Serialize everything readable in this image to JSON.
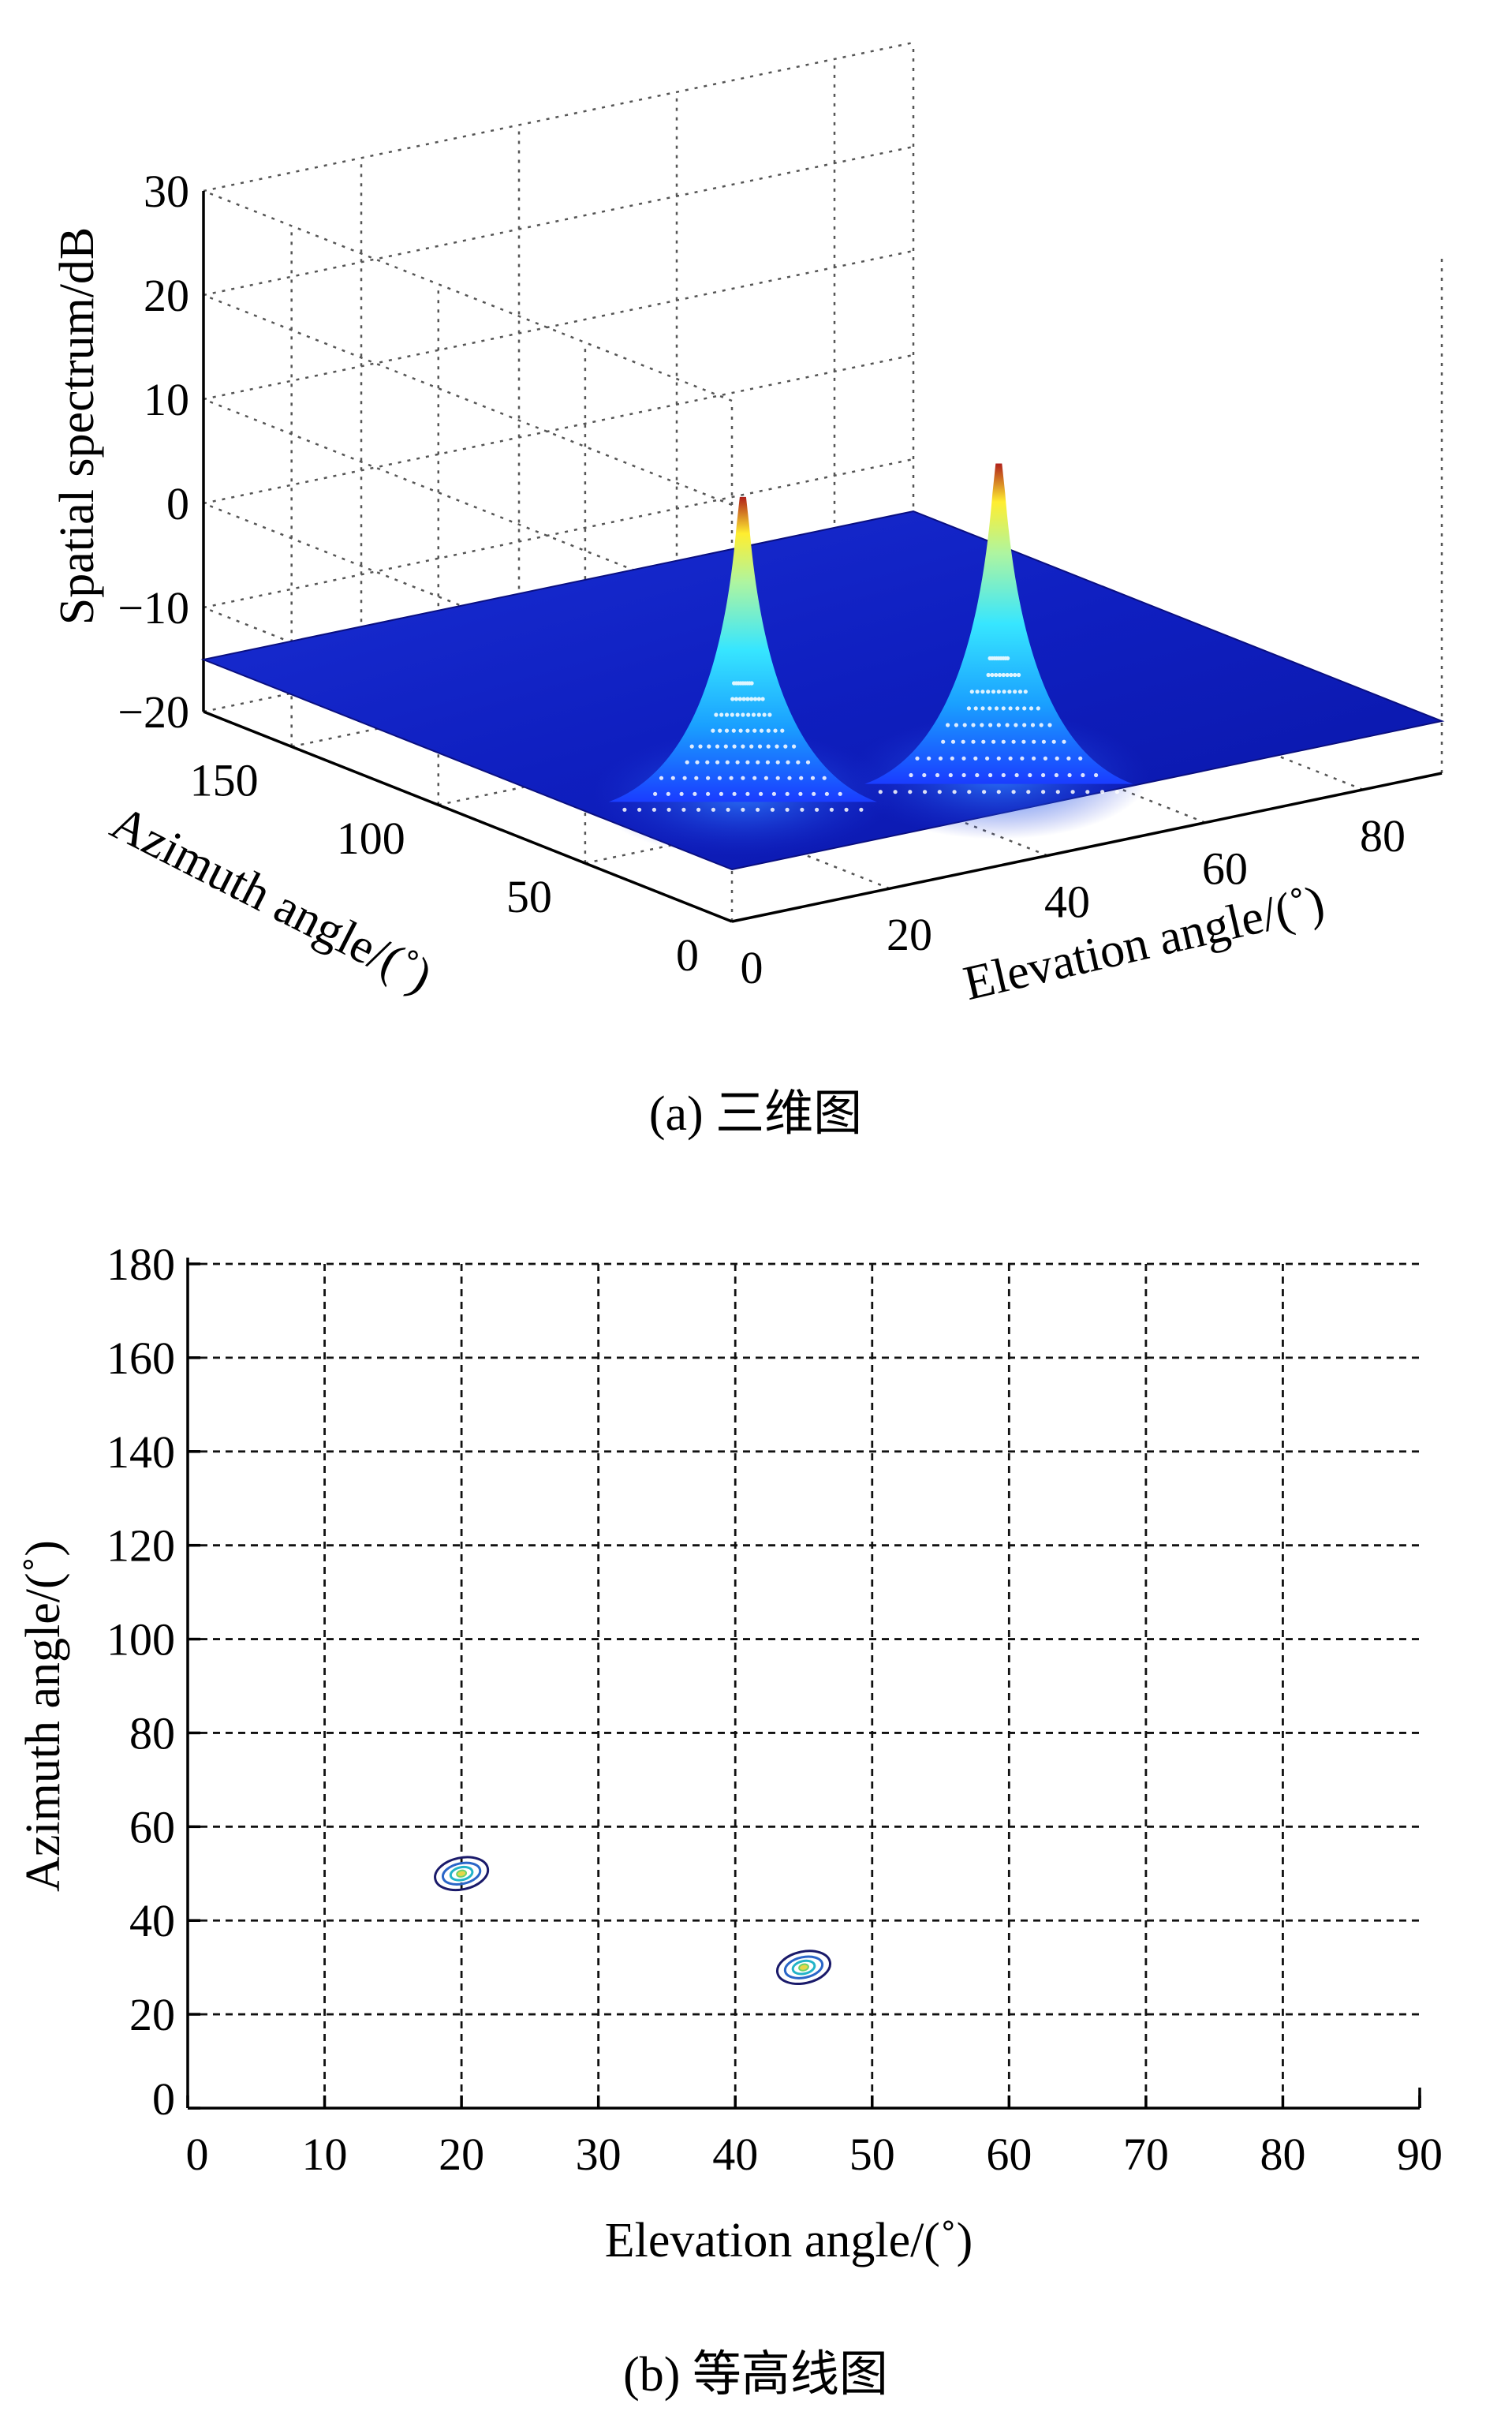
{
  "chart_data": [
    {
      "type": "surface",
      "zlabel": "Spatial spectrum/dB",
      "xlabel": "Elevation angle/(˚)",
      "ylabel": "Azimuth angle/(˚)",
      "z_ticks": [
        "30",
        "20",
        "10",
        "0",
        "−10",
        "−20"
      ],
      "azimuth_ticks": [
        "150",
        "100",
        "50",
        "0"
      ],
      "elevation_ticks": [
        "0",
        "20",
        "40",
        "60",
        "80"
      ],
      "zlim": [
        -20,
        30
      ],
      "xlim": [
        0,
        90
      ],
      "ylim": [
        0,
        180
      ],
      "grid": true,
      "colormap": "jet",
      "floor_level_db": -15,
      "peaks": [
        {
          "elevation": 20,
          "azimuth": 50,
          "value_db": 12
        },
        {
          "elevation": 45,
          "azimuth": 30,
          "value_db": 13.5
        }
      ],
      "caption": "(a) 三维图"
    },
    {
      "type": "contour",
      "xlabel": "Elevation angle/(˚)",
      "ylabel": "Azimuth angle/(˚)",
      "x_ticks": [
        "0",
        "10",
        "20",
        "30",
        "40",
        "50",
        "60",
        "70",
        "80",
        "90"
      ],
      "y_ticks": [
        "0",
        "20",
        "40",
        "60",
        "80",
        "100",
        "120",
        "140",
        "160",
        "180"
      ],
      "xlim": [
        0,
        90
      ],
      "ylim": [
        0,
        180
      ],
      "grid": true,
      "contour_centers": [
        {
          "elevation": 20,
          "azimuth": 50
        },
        {
          "elevation": 45,
          "azimuth": 30
        }
      ],
      "caption": "(b) 等高线图"
    }
  ]
}
